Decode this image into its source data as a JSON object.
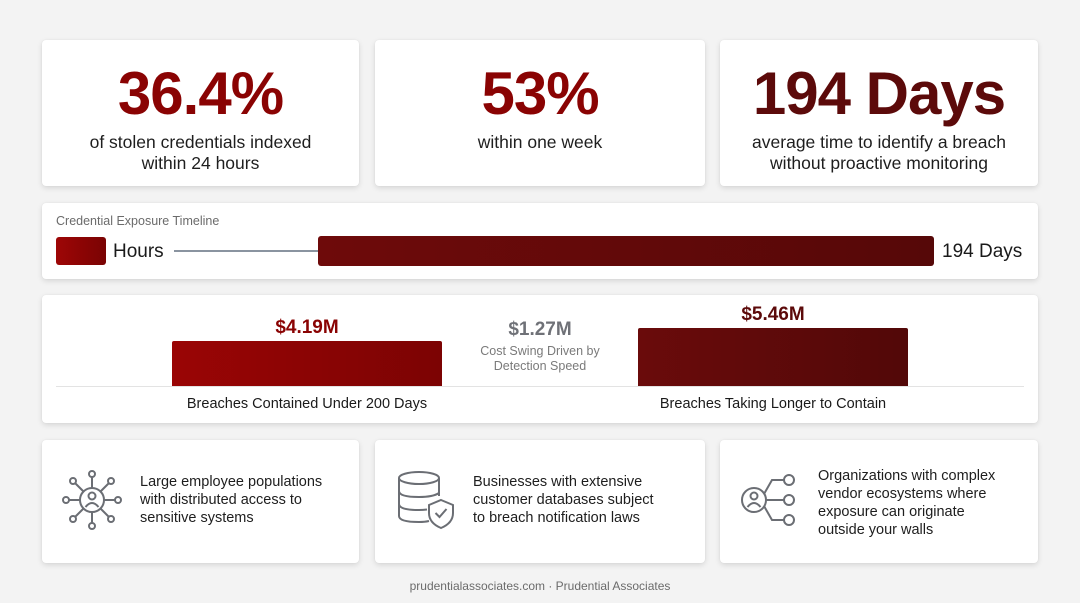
{
  "colors": {
    "accent_red": "#8a0303",
    "dark_red": "#5c0a0a",
    "gray_text": "#6f7177"
  },
  "stats": [
    {
      "value": "36.4%",
      "line1": "of stolen credentials indexed",
      "line2": "within 24 hours"
    },
    {
      "value": "53%",
      "line1": "within one week",
      "line2": ""
    },
    {
      "value": "194 Days",
      "line1": "average time to identify a breach",
      "line2": "without proactive monitoring"
    }
  ],
  "timeline": {
    "title": "Credential Exposure Timeline",
    "start_label": "Hours",
    "end_label": "194 Days"
  },
  "costs": {
    "contained": {
      "value": "$4.19M",
      "label": "Breaches Contained Under 200 Days"
    },
    "longer": {
      "value": "$5.46M",
      "label": "Breaches Taking Longer to Contain"
    },
    "swing": {
      "value": "$1.27M",
      "line1": "Cost Swing Driven by",
      "line2": "Detection Speed"
    }
  },
  "info": [
    {
      "icon": "network-people-icon",
      "lines": [
        "Large employee populations",
        "with distributed access to",
        "sensitive systems"
      ]
    },
    {
      "icon": "database-shield-icon",
      "lines": [
        "Businesses with extensive",
        "customer databases subject",
        "to breach notification laws"
      ]
    },
    {
      "icon": "vendor-network-icon",
      "lines": [
        "Organizations with complex",
        "vendor ecosystems where",
        "exposure can originate",
        "outside your walls"
      ]
    }
  ],
  "footer": "prudentialassociates.com · Prudential Associates"
}
